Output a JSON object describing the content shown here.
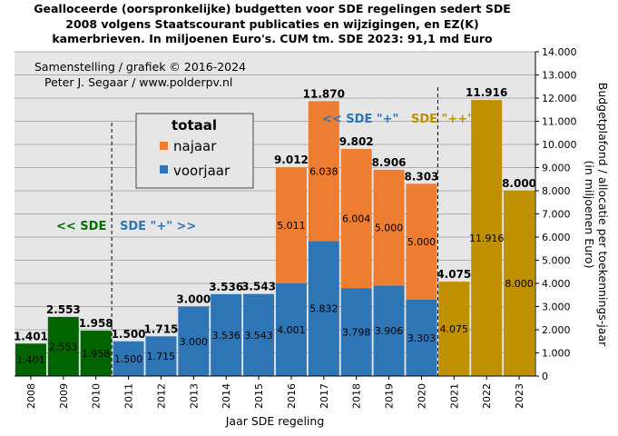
{
  "chart_data": {
    "type": "bar",
    "title": [
      "Gealloceerde (oorspronkelijke) budgetten voor SDE regelingen sedert SDE",
      "2008 volgens Staatscourant publicaties en wijzigingen, en EZ(K)",
      "kamerbrieven. In miljoenen Euro's. CUM tm. SDE 2023: 91,1 md Euro"
    ],
    "credit": [
      "Samenstelling / grafiek © 2016-2024",
      "Peter J. Segaar / www.polderpv.nl"
    ],
    "xlabel": "Jaar SDE regeling",
    "ylabel": [
      "Budgetplafond / allocatie per toekennings-jaar",
      "(in miljoenen Euro)"
    ],
    "ylim": [
      0,
      14000
    ],
    "yticks": [
      0,
      1000,
      2000,
      3000,
      4000,
      5000,
      6000,
      7000,
      8000,
      9000,
      10000,
      11000,
      12000,
      13000,
      14000
    ],
    "ytick_labels": [
      "0",
      "1.000",
      "2.000",
      "3.000",
      "4.000",
      "5.000",
      "6.000",
      "7.000",
      "8.000",
      "9.000",
      "10.000",
      "11.000",
      "12.000",
      "13.000",
      "14.000"
    ],
    "categories": [
      "2008",
      "2009",
      "2010",
      "2011",
      "2012",
      "2013",
      "2014",
      "2015",
      "2016",
      "2017",
      "2018",
      "2019",
      "2020",
      "2021",
      "2022",
      "2023"
    ],
    "series": [
      {
        "name": "voorjaar",
        "values": [
          1401,
          2553,
          1958,
          1500,
          1715,
          3000,
          3536,
          3543,
          4001,
          5832,
          3798,
          3906,
          3303,
          4075,
          11916,
          8000
        ]
      },
      {
        "name": "najaar",
        "values": [
          0,
          0,
          0,
          0,
          0,
          0,
          0,
          0,
          5011,
          6038,
          6004,
          5000,
          5000,
          0,
          0,
          0
        ]
      }
    ],
    "inner_labels": [
      "1.401",
      "2.553",
      "1.958",
      "1.500",
      "1.715",
      "3.000",
      "3.536",
      "3.543",
      "4.001",
      "5.832",
      "3.798",
      "3.906",
      "3.303",
      "4.075",
      "11.916",
      "8.000"
    ],
    "upper_labels": [
      "",
      "",
      "",
      "",
      "",
      "",
      "",
      "",
      "5.011",
      "6.038",
      "6.004",
      "5.000",
      "5.000",
      "",
      "",
      ""
    ],
    "total_labels": [
      "1.401",
      "2.553",
      "1.958",
      "1.500",
      "1.715",
      "3.000",
      "3.536",
      "3.543",
      "9.012",
      "11.870",
      "9.802",
      "8.906",
      "8.303",
      "4.075",
      "11.916",
      "8.000"
    ],
    "legend": {
      "title": "totaal",
      "entries": [
        {
          "label": "najaar",
          "color": "#ed7d31"
        },
        {
          "label": "voorjaar",
          "color": "#2e75b6"
        }
      ]
    },
    "regimes": [
      {
        "label": "<< SDE",
        "color": "#007000"
      },
      {
        "label": "SDE \"+\" >>",
        "color": "#2e75b6"
      },
      {
        "label": "<< SDE \"+\"",
        "color": "#2e75b6"
      },
      {
        "label": "SDE \"++\" >>",
        "color": "#bf9000"
      }
    ],
    "colors": {
      "sde": "#006400",
      "sde_plus_voorjaar": "#2e75b6",
      "sde_plus_najaar": "#ed7d31",
      "sde_plusplus": "#bf9000",
      "plot_bg": "#e6e6e6"
    },
    "grid": true,
    "legend_position": "upper-left"
  }
}
